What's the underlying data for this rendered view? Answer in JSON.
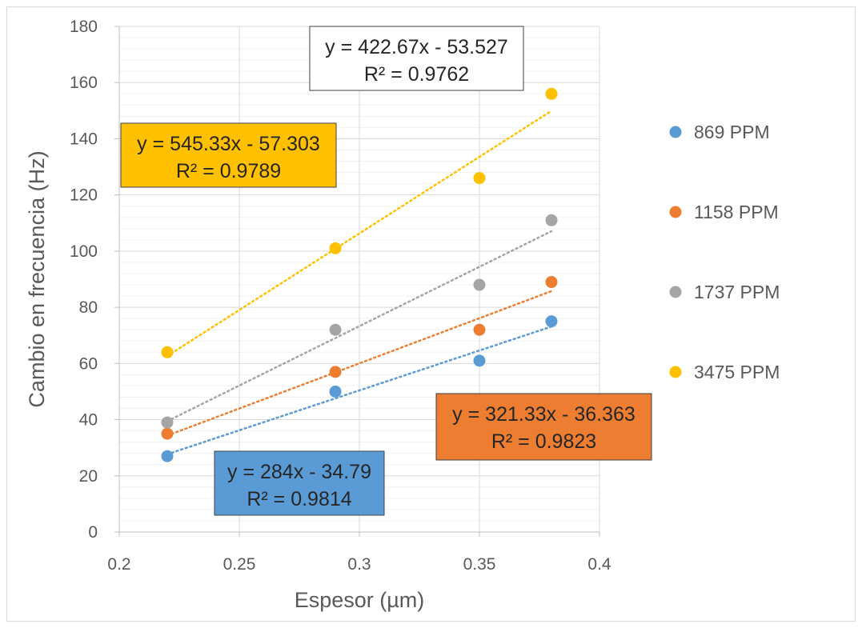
{
  "chart_data": {
    "type": "scatter",
    "title": "",
    "xlabel": "Espesor (µm)",
    "ylabel": "Cambio en frecuencia (Hz)",
    "xlim": [
      0.2,
      0.4
    ],
    "ylim": [
      0,
      180
    ],
    "x_ticks": [
      "0.2",
      "0.25",
      "0.3",
      "0.35",
      "0.4"
    ],
    "y_ticks": [
      "0",
      "20",
      "40",
      "60",
      "80",
      "100",
      "120",
      "140",
      "160",
      "180"
    ],
    "grid": true,
    "legend_position": "right",
    "x": [
      0.22,
      0.29,
      0.35,
      0.38
    ],
    "series": [
      {
        "name": "869 PPM",
        "color": "#5b9bd5",
        "values": [
          27,
          50,
          61,
          75
        ],
        "trendline": {
          "equation": "y = 284x - 34.79",
          "r2": "R² = 0.9814",
          "slope": 284,
          "intercept": -34.79
        }
      },
      {
        "name": "1158 PPM",
        "color": "#ed7d31",
        "values": [
          35,
          57,
          72,
          89
        ],
        "trendline": {
          "equation": "y = 321.33x - 36.363",
          "r2": "R² = 0.9823",
          "slope": 321.33,
          "intercept": -36.363
        }
      },
      {
        "name": "1737 PPM",
        "color": "#a5a5a5",
        "values": [
          39,
          72,
          88,
          111
        ],
        "trendline": {
          "equation": "y = 422.67x - 53.527",
          "r2": "R² = 0.9762",
          "slope": 422.67,
          "intercept": -53.527
        }
      },
      {
        "name": "3475 PPM",
        "color": "#ffc000",
        "values": [
          64,
          101,
          126,
          156
        ],
        "trendline": {
          "equation": "y = 545.33x - 57.303",
          "r2": "R² = 0.9789",
          "slope": 545.33,
          "intercept": -57.303
        }
      }
    ]
  }
}
